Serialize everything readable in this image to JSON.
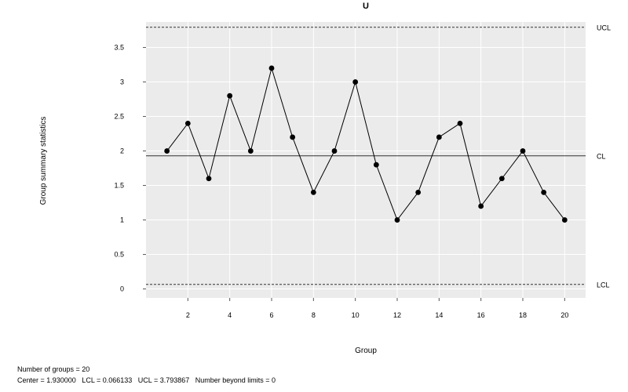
{
  "chart_data": {
    "type": "line",
    "title": "U",
    "xlabel": "Group",
    "ylabel": "Group summary statistics",
    "x": [
      1,
      2,
      3,
      4,
      5,
      6,
      7,
      8,
      9,
      10,
      11,
      12,
      13,
      14,
      15,
      16,
      17,
      18,
      19,
      20
    ],
    "series": [
      {
        "values": [
          2.0,
          2.4,
          1.6,
          2.8,
          2.0,
          3.2,
          2.2,
          1.4,
          2.0,
          3.0,
          1.8,
          1.0,
          1.4,
          2.2,
          2.4,
          1.2,
          1.6,
          2.0,
          1.4,
          1.0
        ]
      }
    ],
    "xticks": [
      "2",
      "4",
      "6",
      "8",
      "10",
      "12",
      "14",
      "16",
      "18",
      "20"
    ],
    "yticks": [
      "0",
      "0.5",
      "1",
      "1.5",
      "2",
      "2.5",
      "3",
      "3.5"
    ],
    "xlim": [
      0,
      21
    ],
    "ylim": [
      -0.13,
      3.87
    ],
    "grid": true,
    "limits": {
      "ucl": {
        "label": "UCL",
        "value": 3.793867
      },
      "cl": {
        "label": "CL",
        "value": 1.93
      },
      "lcl": {
        "label": "LCL",
        "value": 0.066133
      }
    }
  },
  "stats": {
    "line1": "Number of groups = 20",
    "line2": "Center = 1.930000   LCL = 0.066133   UCL = 3.793867   Number beyond limits = 0"
  }
}
